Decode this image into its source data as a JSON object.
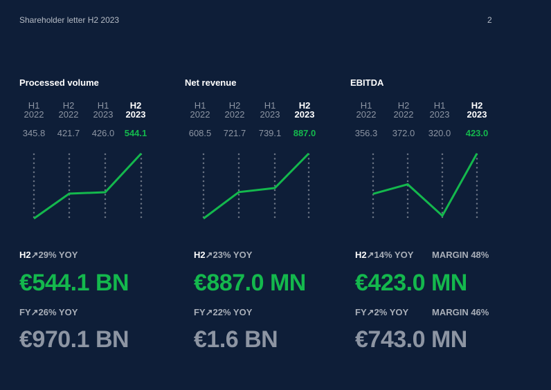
{
  "header": {
    "title": "Shareholder letter H2 2023",
    "page": "2"
  },
  "colors": {
    "accent": "#14b84d",
    "muted": "#8d95a3",
    "background": "#0e1e38"
  },
  "arrow_icon": "↗",
  "panels": [
    {
      "title": "Processed volume",
      "periods": [
        {
          "h": "H1",
          "y": "2022"
        },
        {
          "h": "H2",
          "y": "2022"
        },
        {
          "h": "H1",
          "y": "2023"
        },
        {
          "h": "H2",
          "y": "2023"
        }
      ],
      "values": [
        "345.8",
        "421.7",
        "426.0",
        "544.1"
      ],
      "h2_label": "H2",
      "h2_yoy": "29% YOY",
      "h2_value": "€544.1 BN",
      "fy_label": "FY",
      "fy_yoy": "26% YOY",
      "fy_value": "€970.1 BN"
    },
    {
      "title": "Net revenue",
      "periods": [
        {
          "h": "H1",
          "y": "2022"
        },
        {
          "h": "H2",
          "y": "2022"
        },
        {
          "h": "H1",
          "y": "2023"
        },
        {
          "h": "H2",
          "y": "2023"
        }
      ],
      "values": [
        "608.5",
        "721.7",
        "739.1",
        "887.0"
      ],
      "h2_label": "H2",
      "h2_yoy": "23% YOY",
      "h2_value": "€887.0 MN",
      "fy_label": "FY",
      "fy_yoy": "22% YOY",
      "fy_value": "€1.6 BN"
    },
    {
      "title": "EBITDA",
      "periods": [
        {
          "h": "H1",
          "y": "2022"
        },
        {
          "h": "H2",
          "y": "2022"
        },
        {
          "h": "H1",
          "y": "2023"
        },
        {
          "h": "H2",
          "y": "2023"
        }
      ],
      "values": [
        "356.3",
        "372.0",
        "320.0",
        "423.0"
      ],
      "h2_label": "H2",
      "h2_yoy": "14% YOY",
      "h2_margin": "MARGIN 48%",
      "h2_value": "€423.0 MN",
      "fy_label": "FY",
      "fy_yoy": "2% YOY",
      "fy_margin": "MARGIN 46%",
      "fy_value": "€743.0 MN"
    }
  ]
}
